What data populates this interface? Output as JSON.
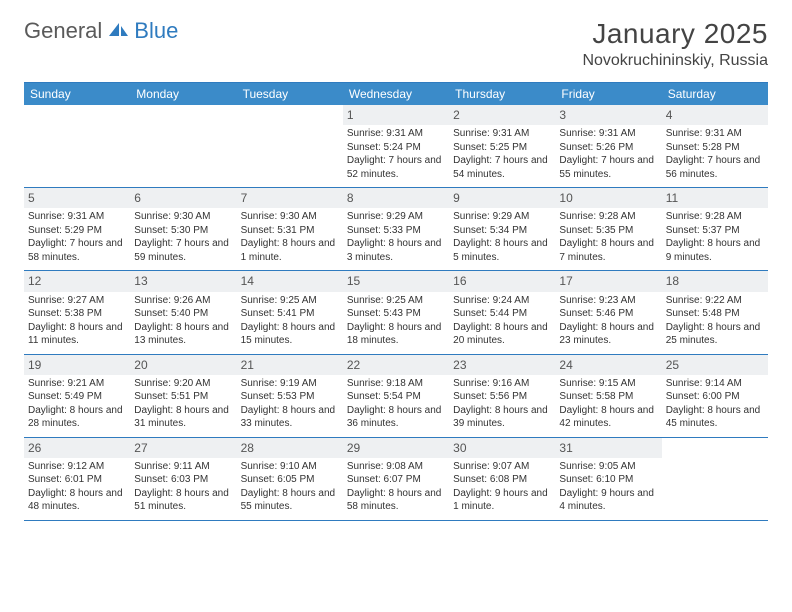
{
  "logo": {
    "word1": "General",
    "word2": "Blue",
    "sail_color": "#2f7bbf"
  },
  "title": "January 2025",
  "location": "Novokruchininskiy, Russia",
  "colors": {
    "header_bg": "#3b8bc9",
    "border": "#2f7bbf",
    "daynum_bg": "#eef0f2",
    "text": "#333333"
  },
  "day_labels": [
    "Sunday",
    "Monday",
    "Tuesday",
    "Wednesday",
    "Thursday",
    "Friday",
    "Saturday"
  ],
  "weeks": [
    [
      {
        "day": "",
        "sunrise": "",
        "sunset": "",
        "daylight": ""
      },
      {
        "day": "",
        "sunrise": "",
        "sunset": "",
        "daylight": ""
      },
      {
        "day": "",
        "sunrise": "",
        "sunset": "",
        "daylight": ""
      },
      {
        "day": "1",
        "sunrise": "Sunrise: 9:31 AM",
        "sunset": "Sunset: 5:24 PM",
        "daylight": "Daylight: 7 hours and 52 minutes."
      },
      {
        "day": "2",
        "sunrise": "Sunrise: 9:31 AM",
        "sunset": "Sunset: 5:25 PM",
        "daylight": "Daylight: 7 hours and 54 minutes."
      },
      {
        "day": "3",
        "sunrise": "Sunrise: 9:31 AM",
        "sunset": "Sunset: 5:26 PM",
        "daylight": "Daylight: 7 hours and 55 minutes."
      },
      {
        "day": "4",
        "sunrise": "Sunrise: 9:31 AM",
        "sunset": "Sunset: 5:28 PM",
        "daylight": "Daylight: 7 hours and 56 minutes."
      }
    ],
    [
      {
        "day": "5",
        "sunrise": "Sunrise: 9:31 AM",
        "sunset": "Sunset: 5:29 PM",
        "daylight": "Daylight: 7 hours and 58 minutes."
      },
      {
        "day": "6",
        "sunrise": "Sunrise: 9:30 AM",
        "sunset": "Sunset: 5:30 PM",
        "daylight": "Daylight: 7 hours and 59 minutes."
      },
      {
        "day": "7",
        "sunrise": "Sunrise: 9:30 AM",
        "sunset": "Sunset: 5:31 PM",
        "daylight": "Daylight: 8 hours and 1 minute."
      },
      {
        "day": "8",
        "sunrise": "Sunrise: 9:29 AM",
        "sunset": "Sunset: 5:33 PM",
        "daylight": "Daylight: 8 hours and 3 minutes."
      },
      {
        "day": "9",
        "sunrise": "Sunrise: 9:29 AM",
        "sunset": "Sunset: 5:34 PM",
        "daylight": "Daylight: 8 hours and 5 minutes."
      },
      {
        "day": "10",
        "sunrise": "Sunrise: 9:28 AM",
        "sunset": "Sunset: 5:35 PM",
        "daylight": "Daylight: 8 hours and 7 minutes."
      },
      {
        "day": "11",
        "sunrise": "Sunrise: 9:28 AM",
        "sunset": "Sunset: 5:37 PM",
        "daylight": "Daylight: 8 hours and 9 minutes."
      }
    ],
    [
      {
        "day": "12",
        "sunrise": "Sunrise: 9:27 AM",
        "sunset": "Sunset: 5:38 PM",
        "daylight": "Daylight: 8 hours and 11 minutes."
      },
      {
        "day": "13",
        "sunrise": "Sunrise: 9:26 AM",
        "sunset": "Sunset: 5:40 PM",
        "daylight": "Daylight: 8 hours and 13 minutes."
      },
      {
        "day": "14",
        "sunrise": "Sunrise: 9:25 AM",
        "sunset": "Sunset: 5:41 PM",
        "daylight": "Daylight: 8 hours and 15 minutes."
      },
      {
        "day": "15",
        "sunrise": "Sunrise: 9:25 AM",
        "sunset": "Sunset: 5:43 PM",
        "daylight": "Daylight: 8 hours and 18 minutes."
      },
      {
        "day": "16",
        "sunrise": "Sunrise: 9:24 AM",
        "sunset": "Sunset: 5:44 PM",
        "daylight": "Daylight: 8 hours and 20 minutes."
      },
      {
        "day": "17",
        "sunrise": "Sunrise: 9:23 AM",
        "sunset": "Sunset: 5:46 PM",
        "daylight": "Daylight: 8 hours and 23 minutes."
      },
      {
        "day": "18",
        "sunrise": "Sunrise: 9:22 AM",
        "sunset": "Sunset: 5:48 PM",
        "daylight": "Daylight: 8 hours and 25 minutes."
      }
    ],
    [
      {
        "day": "19",
        "sunrise": "Sunrise: 9:21 AM",
        "sunset": "Sunset: 5:49 PM",
        "daylight": "Daylight: 8 hours and 28 minutes."
      },
      {
        "day": "20",
        "sunrise": "Sunrise: 9:20 AM",
        "sunset": "Sunset: 5:51 PM",
        "daylight": "Daylight: 8 hours and 31 minutes."
      },
      {
        "day": "21",
        "sunrise": "Sunrise: 9:19 AM",
        "sunset": "Sunset: 5:53 PM",
        "daylight": "Daylight: 8 hours and 33 minutes."
      },
      {
        "day": "22",
        "sunrise": "Sunrise: 9:18 AM",
        "sunset": "Sunset: 5:54 PM",
        "daylight": "Daylight: 8 hours and 36 minutes."
      },
      {
        "day": "23",
        "sunrise": "Sunrise: 9:16 AM",
        "sunset": "Sunset: 5:56 PM",
        "daylight": "Daylight: 8 hours and 39 minutes."
      },
      {
        "day": "24",
        "sunrise": "Sunrise: 9:15 AM",
        "sunset": "Sunset: 5:58 PM",
        "daylight": "Daylight: 8 hours and 42 minutes."
      },
      {
        "day": "25",
        "sunrise": "Sunrise: 9:14 AM",
        "sunset": "Sunset: 6:00 PM",
        "daylight": "Daylight: 8 hours and 45 minutes."
      }
    ],
    [
      {
        "day": "26",
        "sunrise": "Sunrise: 9:12 AM",
        "sunset": "Sunset: 6:01 PM",
        "daylight": "Daylight: 8 hours and 48 minutes."
      },
      {
        "day": "27",
        "sunrise": "Sunrise: 9:11 AM",
        "sunset": "Sunset: 6:03 PM",
        "daylight": "Daylight: 8 hours and 51 minutes."
      },
      {
        "day": "28",
        "sunrise": "Sunrise: 9:10 AM",
        "sunset": "Sunset: 6:05 PM",
        "daylight": "Daylight: 8 hours and 55 minutes."
      },
      {
        "day": "29",
        "sunrise": "Sunrise: 9:08 AM",
        "sunset": "Sunset: 6:07 PM",
        "daylight": "Daylight: 8 hours and 58 minutes."
      },
      {
        "day": "30",
        "sunrise": "Sunrise: 9:07 AM",
        "sunset": "Sunset: 6:08 PM",
        "daylight": "Daylight: 9 hours and 1 minute."
      },
      {
        "day": "31",
        "sunrise": "Sunrise: 9:05 AM",
        "sunset": "Sunset: 6:10 PM",
        "daylight": "Daylight: 9 hours and 4 minutes."
      },
      {
        "day": "",
        "sunrise": "",
        "sunset": "",
        "daylight": ""
      }
    ]
  ]
}
